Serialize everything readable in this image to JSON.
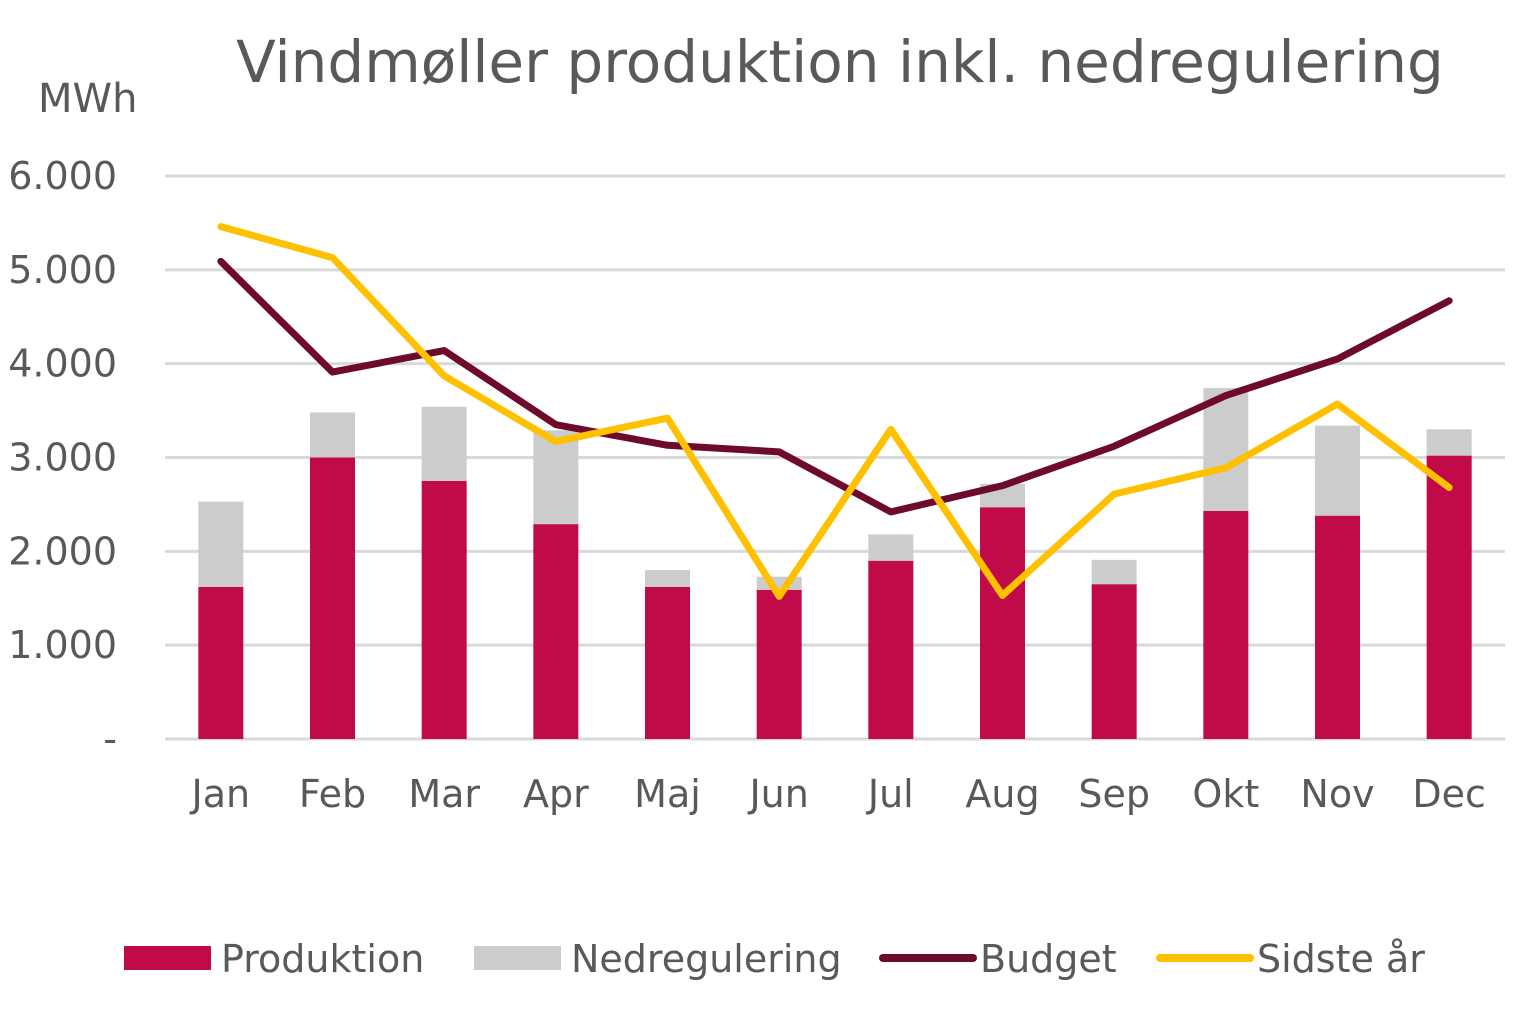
{
  "chart_data": {
    "type": "bar",
    "title": "Vindmøller produktion inkl. nedregulering",
    "ylabel": "MWh",
    "xlabel": "",
    "categories": [
      "Jan",
      "Feb",
      "Mar",
      "Apr",
      "Maj",
      "Jun",
      "Jul",
      "Aug",
      "Sep",
      "Okt",
      "Nov",
      "Dec"
    ],
    "ylim": [
      0,
      6000
    ],
    "yticks": [
      0,
      1000,
      2000,
      3000,
      4000,
      5000,
      6000
    ],
    "ytick_labels": [
      "-",
      "1.000",
      "2.000",
      "3.000",
      "4.000",
      "5.000",
      "6.000"
    ],
    "grid": true,
    "legend_position": "bottom",
    "series": [
      {
        "name": "Produktion",
        "kind": "stacked-bar",
        "color": "#c00a4a",
        "values": [
          1620,
          3000,
          2750,
          2290,
          1620,
          1590,
          1900,
          2470,
          1650,
          2430,
          2380,
          3020
        ]
      },
      {
        "name": "Nedregulering",
        "kind": "stacked-bar",
        "color": "#cccccc",
        "values": [
          910,
          480,
          790,
          1000,
          180,
          140,
          280,
          250,
          260,
          1310,
          960,
          280
        ]
      },
      {
        "name": "Budget",
        "kind": "line",
        "color": "#6e0a2a",
        "values": [
          5090,
          3910,
          4140,
          3350,
          3130,
          3060,
          2420,
          2700,
          3120,
          3660,
          4050,
          4670
        ]
      },
      {
        "name": "Sidste år",
        "kind": "line",
        "color": "#ffc000",
        "values": [
          5460,
          5130,
          3870,
          3170,
          3420,
          1520,
          3300,
          1530,
          2610,
          2890,
          3570,
          2680
        ]
      }
    ]
  }
}
